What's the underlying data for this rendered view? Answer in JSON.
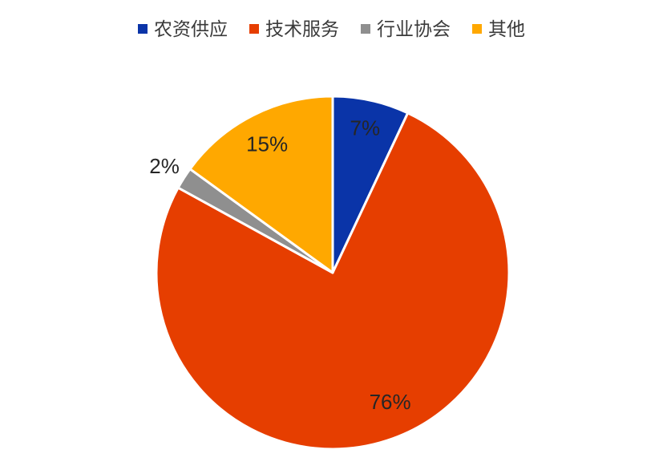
{
  "page": {
    "background": "#FFFFFF"
  },
  "chart_data": {
    "type": "pie",
    "title": "",
    "categories": [
      "农资供应",
      "技术服务",
      "行业协会",
      "其他"
    ],
    "values": [
      7,
      76,
      2,
      15
    ],
    "unit": "%",
    "data_labels": [
      "7%",
      "76%",
      "2%",
      "15%"
    ],
    "label_placements": [
      "inside",
      "inside",
      "outside",
      "inside"
    ],
    "colors": [
      "#0A34A8",
      "#E63E00",
      "#8F8F8F",
      "#FFA800"
    ],
    "data_label_color": "#262626",
    "start_angle_deg": 0,
    "direction": "clockwise",
    "legend_position": "top",
    "slice_gap_color": "#FFFFFF"
  },
  "legend": {
    "items": [
      {
        "label": "农资供应",
        "color": "#0A34A8"
      },
      {
        "label": "技术服务",
        "color": "#E63E00"
      },
      {
        "label": "行业协会",
        "color": "#8F8F8F"
      },
      {
        "label": "其他",
        "color": "#FFA800"
      }
    ]
  }
}
